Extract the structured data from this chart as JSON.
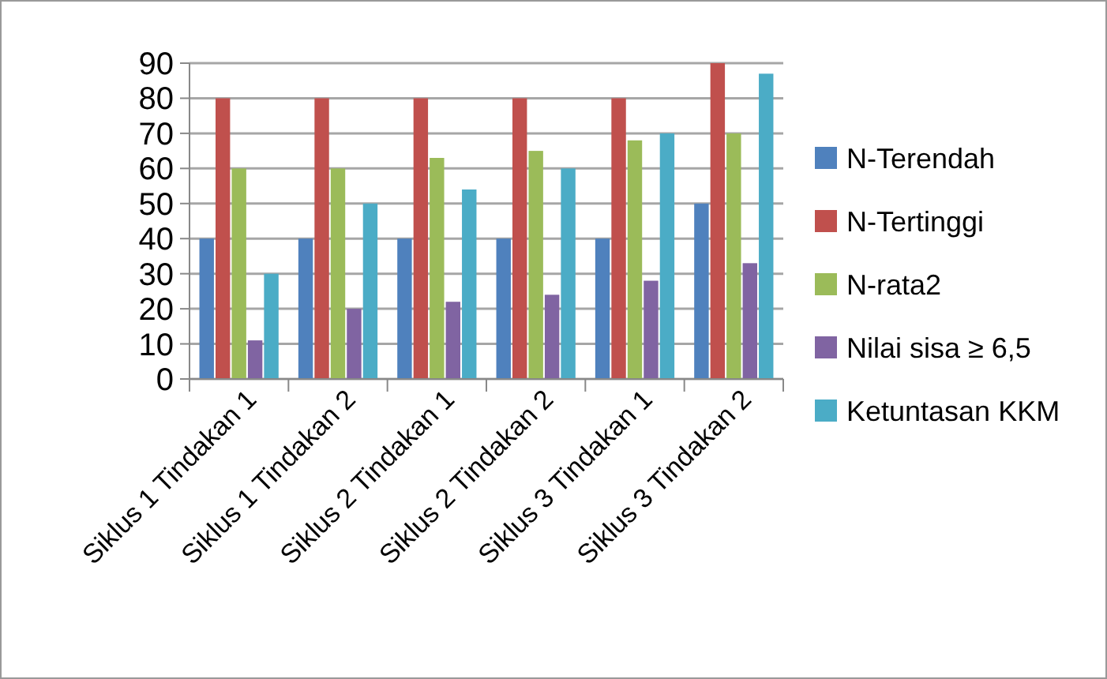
{
  "chart_data": {
    "type": "bar",
    "categories": [
      "Siklus 1 Tindakan 1",
      "Siklus 1 Tindakan 2",
      "Siklus 2 Tindakan 1",
      "Siklus 2 Tindakan 2",
      "Siklus 3 Tindakan 1",
      "Siklus 3 Tindakan 2"
    ],
    "series": [
      {
        "name": "N-Terendah",
        "color": "#4f81bd",
        "values": [
          40,
          40,
          40,
          40,
          40,
          50
        ]
      },
      {
        "name": "N-Tertinggi",
        "color": "#c0504d",
        "values": [
          80,
          80,
          80,
          80,
          80,
          90
        ]
      },
      {
        "name": "N-rata2",
        "color": "#9bbb59",
        "values": [
          60,
          60,
          63,
          65,
          68,
          70
        ]
      },
      {
        "name": "Nilai sisa ≥ 6,5",
        "color": "#8064a2",
        "values": [
          11,
          20,
          22,
          24,
          28,
          33
        ]
      },
      {
        "name": "Ketuntasan KKM",
        "color": "#4bacc6",
        "values": [
          30,
          50,
          54,
          60,
          70,
          87
        ]
      }
    ],
    "ylim": [
      0,
      90
    ],
    "yticks": [
      0,
      10,
      20,
      30,
      40,
      50,
      60,
      70,
      80,
      90
    ],
    "grid": "y",
    "legend": "right"
  }
}
